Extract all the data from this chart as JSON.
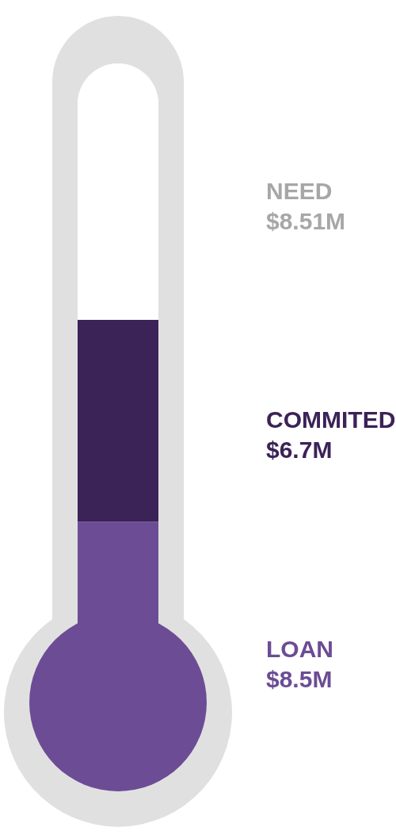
{
  "chart_data": {
    "type": "other",
    "categories": [
      "NEED",
      "COMMITED",
      "LOAN"
    ],
    "values": [
      8.51,
      6.7,
      8.5
    ],
    "value_labels": [
      "$8.51M",
      "$6.7M",
      "$8.5M"
    ],
    "colors": [
      "#ffffff",
      "#3b2257",
      "#6c4c94"
    ]
  }
}
